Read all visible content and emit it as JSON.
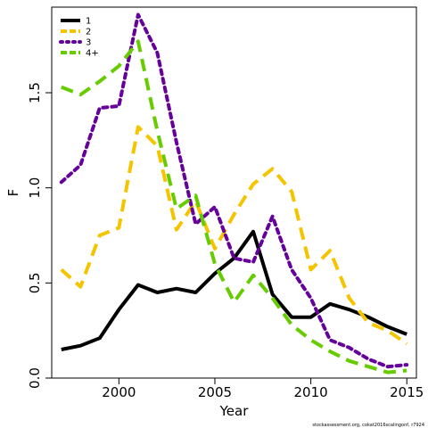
{
  "chart_data": {
    "type": "line",
    "title": "",
    "xlabel": "Year",
    "ylabel": "F",
    "xlim": [
      1996.5,
      2015.5
    ],
    "ylim": [
      0.0,
      1.95
    ],
    "x_ticks": [
      2000,
      2005,
      2010,
      2015
    ],
    "y_ticks": [
      0.0,
      0.5,
      1.0,
      1.5
    ],
    "x_tick_labels": [
      "2000",
      "2005",
      "2010",
      "2015"
    ],
    "y_tick_labels": [
      "0.0",
      "0.5",
      "1.0",
      "1.5"
    ],
    "grid": false,
    "legend_position": "top-left",
    "x": [
      1997,
      1998,
      1999,
      2000,
      2001,
      2002,
      2003,
      2004,
      2005,
      2006,
      2007,
      2008,
      2009,
      2010,
      2011,
      2012,
      2013,
      2014,
      2015
    ],
    "series": [
      {
        "name": "1",
        "color": "#000000",
        "dash": "solid",
        "values": [
          0.15,
          0.17,
          0.21,
          0.36,
          0.49,
          0.45,
          0.47,
          0.45,
          0.55,
          0.63,
          0.77,
          0.44,
          0.32,
          0.32,
          0.39,
          0.36,
          0.32,
          0.27,
          0.23
        ]
      },
      {
        "name": "2",
        "color": "#f5c400",
        "dash": "dashed",
        "values": [
          0.57,
          0.48,
          0.75,
          0.79,
          1.32,
          1.22,
          0.78,
          0.93,
          0.68,
          0.86,
          1.02,
          1.1,
          0.98,
          0.57,
          0.67,
          0.42,
          0.29,
          0.25,
          0.18
        ]
      },
      {
        "name": "3",
        "color": "#66009a",
        "dash": "dotted",
        "values": [
          1.03,
          1.12,
          1.42,
          1.43,
          1.91,
          1.71,
          1.24,
          0.81,
          0.9,
          0.63,
          0.61,
          0.85,
          0.57,
          0.42,
          0.2,
          0.16,
          0.1,
          0.06,
          0.07
        ]
      },
      {
        "name": "4+",
        "color": "#66cc00",
        "dash": "dashed",
        "values": [
          1.53,
          1.49,
          1.56,
          1.64,
          1.77,
          1.3,
          0.89,
          0.96,
          0.6,
          0.4,
          0.54,
          0.42,
          0.28,
          0.2,
          0.14,
          0.09,
          0.06,
          0.03,
          0.04
        ]
      }
    ],
    "credit": "stockassessment.org, cokat2016scalingonf, r7924"
  }
}
